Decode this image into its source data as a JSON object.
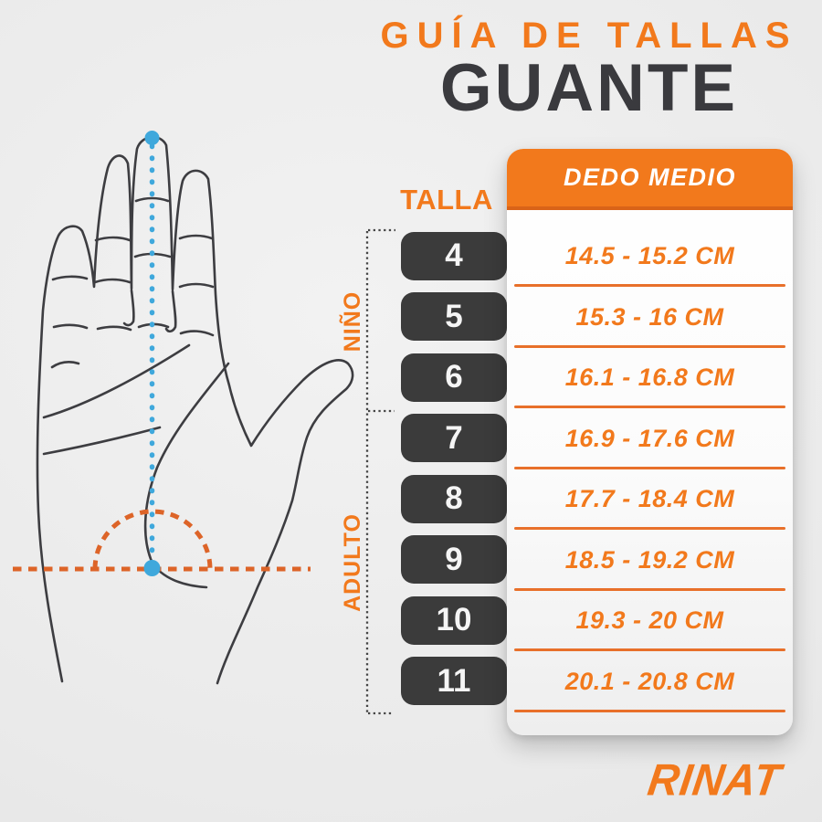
{
  "title": {
    "kicker": "GUÍA DE TALLAS",
    "main": "GUANTE"
  },
  "size_table": {
    "size_column_header": "TALLA",
    "measure_column_header": "DEDO MEDIO",
    "rows": [
      {
        "size": "4",
        "range": "14.5 - 15.2 CM"
      },
      {
        "size": "5",
        "range": "15.3 - 16 CM"
      },
      {
        "size": "6",
        "range": "16.1 - 16.8 CM"
      },
      {
        "size": "7",
        "range": "16.9 - 17.6 CM"
      },
      {
        "size": "8",
        "range": "17.7 - 18.4 CM"
      },
      {
        "size": "9",
        "range": "18.5 - 19.2 CM"
      },
      {
        "size": "10",
        "range": "19.3 - 20 CM"
      },
      {
        "size": "11",
        "range": "20.1 - 20.8 CM"
      }
    ],
    "groups": [
      {
        "label": "NIÑO",
        "sizes": [
          "4",
          "5",
          "6"
        ]
      },
      {
        "label": "ADULTO",
        "sizes": [
          "7",
          "8",
          "9",
          "10",
          "11"
        ]
      }
    ]
  },
  "diagram": {
    "subject": "open-hand-outline",
    "measured_part": "middle-finger-length",
    "finger_line_color": "#3FA8DC",
    "width_line_color": "#DD6428"
  },
  "brand": {
    "name": "RINAT"
  },
  "colors": {
    "accent": "#F2791C",
    "header_edge": "#D96318",
    "divider": "#E8702A",
    "pill": "#3B3B3B",
    "title_dark": "#3A3A3E"
  }
}
